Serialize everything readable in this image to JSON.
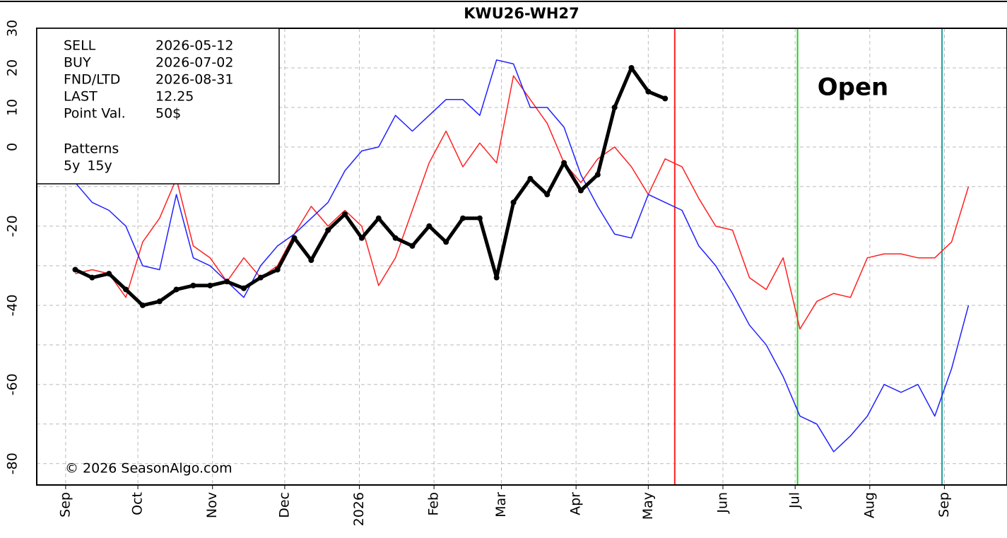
{
  "chart_data": {
    "type": "line",
    "title": "KWU26-WH27",
    "x": [
      "2025-09-05",
      "2025-09-12",
      "2025-09-19",
      "2025-09-26",
      "2025-10-03",
      "2025-10-10",
      "2025-10-17",
      "2025-10-24",
      "2025-10-31",
      "2025-11-07",
      "2025-11-14",
      "2025-11-21",
      "2025-11-28",
      "2025-12-05",
      "2025-12-12",
      "2025-12-19",
      "2025-12-26",
      "2026-01-02",
      "2026-01-09",
      "2026-01-16",
      "2026-01-23",
      "2026-01-30",
      "2026-02-06",
      "2026-02-13",
      "2026-02-20",
      "2026-02-27",
      "2026-03-06",
      "2026-03-13",
      "2026-03-20",
      "2026-03-27",
      "2026-04-03",
      "2026-04-10",
      "2026-04-17",
      "2026-04-24",
      "2026-05-01",
      "2026-05-08",
      "2026-05-15",
      "2026-05-22",
      "2026-05-29",
      "2026-06-05",
      "2026-06-12",
      "2026-06-19",
      "2026-06-26",
      "2026-07-03",
      "2026-07-10",
      "2026-07-17",
      "2026-07-24",
      "2026-07-31",
      "2026-08-07",
      "2026-08-14",
      "2026-08-21",
      "2026-08-28",
      "2026-09-04",
      "2026-09-11"
    ],
    "series": [
      {
        "name": "5y",
        "color": "#ff2020",
        "values": [
          -32,
          -31,
          -32,
          -38,
          -24,
          -18,
          -8,
          -25,
          -28,
          -34,
          -28,
          -33,
          -30,
          -22,
          -15,
          -20,
          -16,
          -20,
          -35,
          -28,
          -16,
          -4,
          4,
          -5,
          1,
          -4,
          18,
          12,
          6,
          -4,
          -9,
          -3,
          0,
          -5,
          -12,
          -3,
          -5,
          -13,
          -20,
          -21,
          -33,
          -36,
          -28,
          -46,
          -39,
          -37,
          -38,
          -28,
          -27,
          -27,
          -28,
          -28,
          -24,
          -10
        ]
      },
      {
        "name": "15y",
        "color": "#2020ff",
        "values": [
          -9,
          -14,
          -16,
          -20,
          -30,
          -31,
          -12,
          -28,
          -30,
          -34,
          -38,
          -30,
          -25,
          -22,
          -18,
          -14,
          -6,
          -1,
          0,
          8,
          4,
          8,
          12,
          12,
          8,
          22,
          21,
          10,
          10,
          5,
          -7,
          -15,
          -22,
          -23,
          -12,
          -14,
          -16,
          -25,
          -30,
          -37,
          -45,
          -50,
          -58,
          -68,
          -70,
          -77,
          -73,
          -68,
          -60,
          -62,
          -60,
          -68,
          -56,
          -40
        ]
      },
      {
        "color": "#000000",
        "values": [
          -31,
          -33,
          -32,
          -36,
          -40,
          -39,
          -36,
          -35,
          -35,
          -34,
          -35.7,
          -33,
          -31,
          -23,
          -28.6,
          -21,
          -17,
          -23,
          -18,
          -23,
          -25,
          -20,
          -24,
          -18,
          -18,
          -33,
          -14,
          -8,
          -12,
          -4,
          -11,
          -7,
          10,
          20,
          14,
          12.25,
          null,
          null,
          null,
          null,
          null,
          null,
          null,
          null,
          null,
          null,
          null,
          null,
          null,
          null,
          null,
          null,
          null,
          null
        ]
      }
    ],
    "xlim": [
      "2025-08-20",
      "2026-09-27"
    ],
    "xticks": [
      {
        "value": "2025-09-01",
        "label": "Sep"
      },
      {
        "value": "2025-10-01",
        "label": "Oct"
      },
      {
        "value": "2025-11-01",
        "label": "Nov"
      },
      {
        "value": "2025-12-01",
        "label": "Dec"
      },
      {
        "value": "2026-01-01",
        "label": "2026"
      },
      {
        "value": "2026-02-01",
        "label": "Feb"
      },
      {
        "value": "2026-03-01",
        "label": "Mar"
      },
      {
        "value": "2026-04-01",
        "label": "Apr"
      },
      {
        "value": "2026-05-01",
        "label": "May"
      },
      {
        "value": "2026-06-01",
        "label": "Jun"
      },
      {
        "value": "2026-07-01",
        "label": "Jul"
      },
      {
        "value": "2026-08-01",
        "label": "Aug"
      },
      {
        "value": "2026-09-01",
        "label": "Sep"
      }
    ],
    "ylim": [
      -85.4,
      30
    ],
    "yticks": [
      30,
      20,
      10,
      0,
      -20,
      -40,
      -60,
      -80
    ],
    "minor_yticks": [
      -10,
      -30,
      -50,
      -70
    ],
    "grid": true,
    "markers": [
      {
        "label": "SELL",
        "date": "2026-05-12",
        "color": "#ff2020"
      },
      {
        "label": "BUY",
        "date": "2026-07-02",
        "color": "#20d020"
      },
      {
        "label": "FND/LTD",
        "date": "2026-08-31",
        "color": "#20a0a0"
      }
    ],
    "info": [
      {
        "label": "LAST",
        "value": "12.25"
      },
      {
        "label": "Point Val.",
        "value": "50$"
      }
    ],
    "patterns_title": "Patterns",
    "status": "Open",
    "status_color": "#10b050",
    "copyright": "© 2026 SeasonAlgo.com"
  }
}
